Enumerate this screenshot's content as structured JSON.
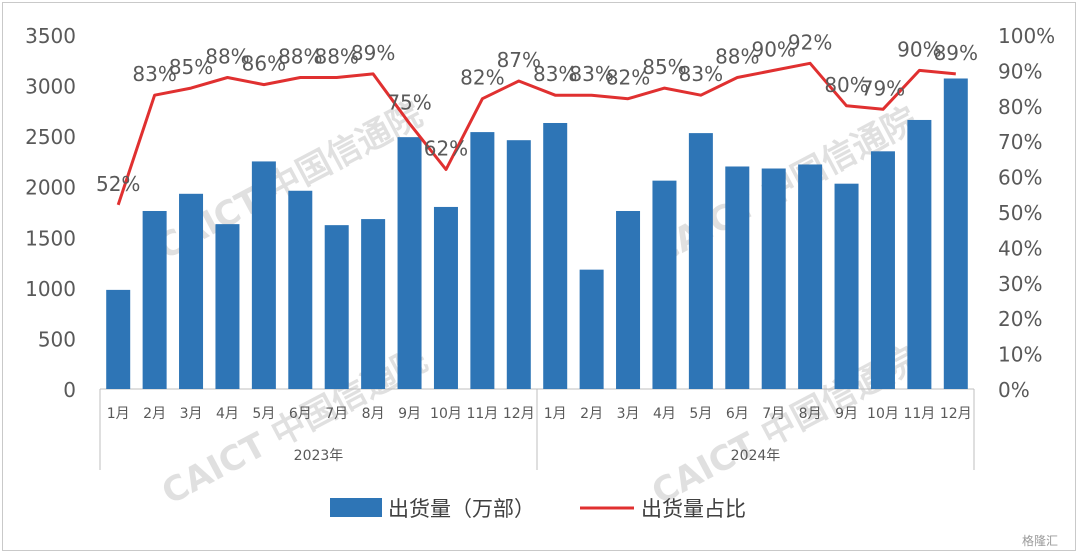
{
  "chart_data": {
    "type": "bar+line",
    "year_groups": [
      {
        "label": "2023年",
        "months": [
          "1月",
          "2月",
          "3月",
          "4月",
          "5月",
          "6月",
          "7月",
          "8月",
          "9月",
          "10月",
          "11月",
          "12月"
        ]
      },
      {
        "label": "2024年",
        "months": [
          "1月",
          "2月",
          "3月",
          "4月",
          "5月",
          "6月",
          "7月",
          "8月",
          "9月",
          "10月",
          "11月",
          "12月"
        ]
      }
    ],
    "series": [
      {
        "name": "出货量（万部）",
        "type": "bar",
        "axis": "left",
        "color": "#2e75b6",
        "values": [
          980,
          1760,
          1930,
          1630,
          2250,
          1960,
          1620,
          1680,
          2490,
          1800,
          2540,
          2460,
          2630,
          1180,
          1760,
          2060,
          2530,
          2200,
          2180,
          2220,
          2030,
          2350,
          2660,
          3070
        ]
      },
      {
        "name": "出货量占比",
        "type": "line",
        "axis": "right",
        "color": "#e03030",
        "values": [
          52,
          83,
          85,
          88,
          86,
          88,
          88,
          89,
          75,
          62,
          82,
          87,
          83,
          83,
          82,
          85,
          83,
          88,
          90,
          92,
          80,
          79,
          90,
          89
        ],
        "labels": [
          "52%",
          "83%",
          "85%",
          "88%",
          "86%",
          "88%",
          "88%",
          "89%",
          "75%",
          "62%",
          "82%",
          "87%",
          "83%",
          "83%",
          "82%",
          "85%",
          "83%",
          "88%",
          "90%",
          "92%",
          "80%",
          "79%",
          "90%",
          "89%"
        ]
      }
    ],
    "y_left": {
      "min": 0,
      "max": 3500,
      "ticks": [
        "0",
        "500",
        "1000",
        "1500",
        "2000",
        "2500",
        "3000",
        "3500"
      ]
    },
    "y_right": {
      "min": 0,
      "max": 100,
      "ticks": [
        "0%",
        "10%",
        "20%",
        "30%",
        "40%",
        "50%",
        "60%",
        "70%",
        "80%",
        "90%",
        "100%"
      ]
    },
    "grid": false,
    "legend_position": "bottom"
  },
  "legend": {
    "bar_label": "出货量（万部）",
    "line_label": "出货量占比"
  },
  "watermark": "CAICT 中国信通院",
  "brand": "格隆汇"
}
